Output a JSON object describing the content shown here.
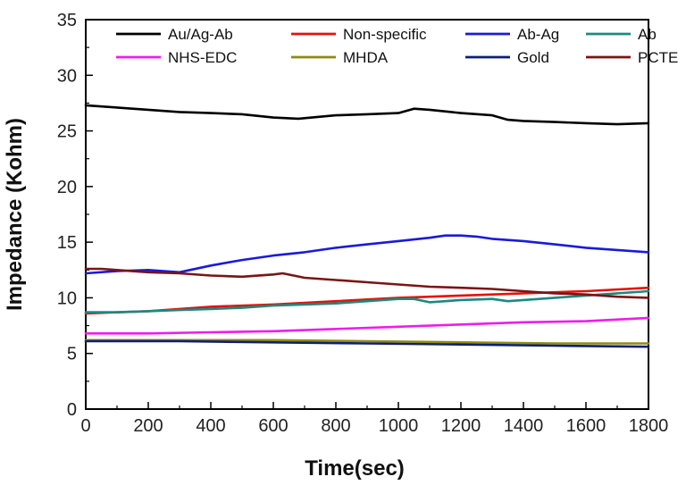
{
  "chart_data": {
    "type": "line",
    "xlabel": "Time(sec)",
    "ylabel": "Impedance (Kohm)",
    "xlim": [
      0,
      1800
    ],
    "ylim": [
      0,
      35
    ],
    "xticks": [
      0,
      200,
      400,
      600,
      800,
      1000,
      1200,
      1400,
      1600,
      1800
    ],
    "yticks": [
      0,
      5,
      10,
      15,
      20,
      25,
      30,
      35
    ],
    "grid": false,
    "legend_position": "top",
    "series": [
      {
        "name": "Au/Ag-Ab",
        "color": "#000000",
        "x": [
          0,
          100,
          200,
          300,
          400,
          500,
          600,
          680,
          800,
          900,
          1000,
          1050,
          1100,
          1200,
          1300,
          1350,
          1400,
          1500,
          1600,
          1700,
          1800
        ],
        "y": [
          27.3,
          27.1,
          26.9,
          26.7,
          26.6,
          26.5,
          26.2,
          26.1,
          26.4,
          26.5,
          26.6,
          27.0,
          26.9,
          26.6,
          26.4,
          26.0,
          25.9,
          25.8,
          25.7,
          25.6,
          25.7
        ]
      },
      {
        "name": "Non-specific",
        "color": "#e3120b",
        "x": [
          0,
          200,
          400,
          600,
          800,
          1000,
          1200,
          1400,
          1600,
          1800
        ],
        "y": [
          8.6,
          8.8,
          9.2,
          9.4,
          9.7,
          10.0,
          10.2,
          10.4,
          10.6,
          10.9
        ]
      },
      {
        "name": "Ab-Ag",
        "color": "#1a1adb",
        "x": [
          0,
          100,
          200,
          300,
          400,
          500,
          600,
          700,
          800,
          900,
          1000,
          1100,
          1150,
          1200,
          1250,
          1300,
          1400,
          1500,
          1600,
          1700,
          1800
        ],
        "y": [
          12.2,
          12.4,
          12.5,
          12.3,
          12.9,
          13.4,
          13.8,
          14.1,
          14.5,
          14.8,
          15.1,
          15.4,
          15.6,
          15.6,
          15.5,
          15.3,
          15.1,
          14.8,
          14.5,
          14.3,
          14.1
        ]
      },
      {
        "name": "Ab",
        "color": "#1b8a80",
        "x": [
          0,
          100,
          200,
          300,
          400,
          500,
          600,
          700,
          800,
          900,
          1000,
          1050,
          1100,
          1200,
          1300,
          1350,
          1400,
          1500,
          1600,
          1700,
          1800
        ],
        "y": [
          8.7,
          8.7,
          8.8,
          8.9,
          9.0,
          9.1,
          9.3,
          9.4,
          9.5,
          9.7,
          9.9,
          9.9,
          9.6,
          9.8,
          9.9,
          9.7,
          9.8,
          10.0,
          10.2,
          10.4,
          10.6
        ]
      },
      {
        "name": "NHS-EDC",
        "color": "#ee1cee",
        "x": [
          0,
          200,
          400,
          600,
          800,
          1000,
          1200,
          1400,
          1600,
          1800
        ],
        "y": [
          6.8,
          6.8,
          6.9,
          7.0,
          7.2,
          7.4,
          7.6,
          7.8,
          7.9,
          8.2
        ]
      },
      {
        "name": "MHDA",
        "color": "#8f8a12",
        "x": [
          0,
          300,
          600,
          900,
          1200,
          1500,
          1800
        ],
        "y": [
          6.2,
          6.2,
          6.2,
          6.1,
          6.0,
          5.9,
          5.9
        ]
      },
      {
        "name": "Gold",
        "color": "#0d1e78",
        "x": [
          0,
          300,
          600,
          900,
          1200,
          1500,
          1800
        ],
        "y": [
          6.1,
          6.1,
          6.0,
          5.9,
          5.8,
          5.7,
          5.6
        ]
      },
      {
        "name": "PCTE",
        "color": "#7a1414",
        "x": [
          0,
          50,
          100,
          200,
          300,
          400,
          500,
          600,
          630,
          700,
          800,
          900,
          1000,
          1100,
          1200,
          1300,
          1400,
          1500,
          1600,
          1700,
          1800
        ],
        "y": [
          12.6,
          12.6,
          12.5,
          12.3,
          12.2,
          12.0,
          11.9,
          12.1,
          12.2,
          11.8,
          11.6,
          11.4,
          11.2,
          11.0,
          10.9,
          10.8,
          10.6,
          10.4,
          10.3,
          10.1,
          10.0
        ]
      }
    ]
  }
}
